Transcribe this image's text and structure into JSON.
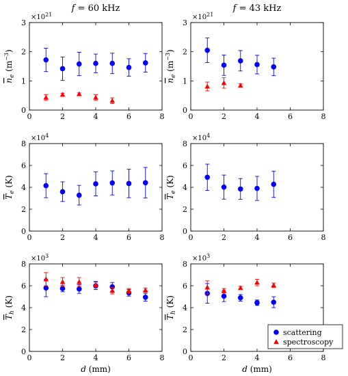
{
  "titles": {
    "left": "f = 60 kHz",
    "right": "f = 43 kHz"
  },
  "xlabel": "d (mm)",
  "legend": {
    "scattering": "scattering",
    "spectroscopy": "spectroscopy",
    "placement": "bottom-right of last panel"
  },
  "colors": {
    "scattering": "#0000ff",
    "spectroscopy": "#ff0000"
  },
  "chart_data": [
    {
      "type": "scatter",
      "column": "left",
      "row": 0,
      "ylabel": "n̄e (m⁻³)",
      "ylabel_parts": {
        "sym": "n",
        "sub": "e",
        "unit_pre": "(m",
        "unit_sup": "−3",
        "unit_post": ")"
      },
      "multiplier": {
        "base": "×10",
        "exp": "21"
      },
      "xlim": [
        0,
        8
      ],
      "ylim": [
        0,
        3
      ],
      "xticks": [
        "0",
        "2",
        "4",
        "6",
        "8"
      ],
      "yticks": [
        "0",
        "1",
        "2",
        "3"
      ],
      "series": [
        {
          "name": "scattering",
          "x": [
            1,
            2,
            3,
            4,
            5,
            6,
            7
          ],
          "y": [
            1.72,
            1.42,
            1.58,
            1.6,
            1.6,
            1.46,
            1.62
          ],
          "err": [
            0.4,
            0.4,
            0.4,
            0.32,
            0.35,
            0.3,
            0.32
          ]
        },
        {
          "name": "spectroscopy",
          "x": [
            1,
            2,
            3,
            4,
            5
          ],
          "y": [
            0.43,
            0.53,
            0.55,
            0.43,
            0.32
          ],
          "err": [
            0.1,
            0.05,
            0.04,
            0.1,
            0.1
          ]
        }
      ]
    },
    {
      "type": "scatter",
      "column": "right",
      "row": 0,
      "ylabel": "n̄e (m⁻³)",
      "ylabel_parts": {
        "sym": "n",
        "sub": "e",
        "unit_pre": "(m",
        "unit_sup": "−3",
        "unit_post": ")"
      },
      "multiplier": {
        "base": "×10",
        "exp": "21"
      },
      "xlim": [
        0,
        8
      ],
      "ylim": [
        0,
        3
      ],
      "xticks": [
        "0",
        "2",
        "4",
        "6",
        "8"
      ],
      "yticks": [
        "0",
        "1",
        "2",
        "3"
      ],
      "series": [
        {
          "name": "scattering",
          "x": [
            1,
            2,
            3,
            4,
            5
          ],
          "y": [
            2.05,
            1.54,
            1.69,
            1.56,
            1.48
          ],
          "err": [
            0.42,
            0.35,
            0.35,
            0.32,
            0.3
          ]
        },
        {
          "name": "spectroscopy",
          "x": [
            1,
            2,
            3
          ],
          "y": [
            0.81,
            0.93,
            0.84
          ],
          "err": [
            0.15,
            0.18,
            0.06
          ]
        }
      ]
    },
    {
      "type": "scatter",
      "column": "left",
      "row": 1,
      "ylabel": "T̄e (K)",
      "ylabel_parts": {
        "sym": "T",
        "sub": "e",
        "unit_pre": "(K)",
        "unit_sup": "",
        "unit_post": ""
      },
      "multiplier": {
        "base": "×10",
        "exp": "4"
      },
      "xlim": [
        0,
        8
      ],
      "ylim": [
        0,
        8
      ],
      "xticks": [
        "0",
        "2",
        "4",
        "6",
        "8"
      ],
      "yticks": [
        "0",
        "2",
        "4",
        "6",
        "8"
      ],
      "series": [
        {
          "name": "scattering",
          "x": [
            1,
            2,
            3,
            4,
            5,
            6,
            7
          ],
          "y": [
            4.15,
            3.6,
            3.28,
            4.32,
            4.4,
            4.35,
            4.42
          ],
          "err": [
            1.1,
            0.9,
            0.9,
            1.1,
            1.1,
            1.3,
            1.4
          ]
        }
      ]
    },
    {
      "type": "scatter",
      "column": "right",
      "row": 1,
      "ylabel": "T̄e (K)",
      "ylabel_parts": {
        "sym": "T",
        "sub": "e",
        "unit_pre": "(K)",
        "unit_sup": "",
        "unit_post": ""
      },
      "multiplier": {
        "base": "×10",
        "exp": "4"
      },
      "xlim": [
        0,
        8
      ],
      "ylim": [
        0,
        8
      ],
      "xticks": [
        "0",
        "2",
        "4",
        "6",
        "8"
      ],
      "yticks": [
        "0",
        "2",
        "4",
        "6",
        "8"
      ],
      "series": [
        {
          "name": "scattering",
          "x": [
            1,
            2,
            3,
            4,
            5
          ],
          "y": [
            4.92,
            4.02,
            3.85,
            3.9,
            4.28
          ],
          "err": [
            1.2,
            1.1,
            0.95,
            1.1,
            1.2
          ]
        }
      ]
    },
    {
      "type": "scatter",
      "column": "left",
      "row": 2,
      "ylabel": "T̄h (K)",
      "ylabel_parts": {
        "sym": "T",
        "sub": "h",
        "unit_pre": "(K)",
        "unit_sup": "",
        "unit_post": ""
      },
      "multiplier": {
        "base": "×10",
        "exp": "3"
      },
      "xlim": [
        0,
        8
      ],
      "ylim": [
        0,
        8
      ],
      "xticks": [
        "0",
        "2",
        "4",
        "6",
        "8"
      ],
      "yticks": [
        "0",
        "2",
        "4",
        "6",
        "8"
      ],
      "series": [
        {
          "name": "scattering",
          "x": [
            1,
            2,
            3,
            4,
            5,
            6,
            7
          ],
          "y": [
            5.8,
            5.75,
            5.7,
            6.0,
            5.9,
            5.35,
            4.95
          ],
          "err": [
            0.8,
            0.3,
            0.4,
            0.35,
            0.4,
            0.3,
            0.35
          ]
        },
        {
          "name": "spectroscopy",
          "x": [
            1,
            2,
            3,
            4,
            5,
            6,
            7
          ],
          "y": [
            6.6,
            6.35,
            6.35,
            6.1,
            5.55,
            5.55,
            5.6
          ],
          "err": [
            0.6,
            0.4,
            0.4,
            0.3,
            0.3,
            0.2,
            0.2
          ]
        }
      ]
    },
    {
      "type": "scatter",
      "column": "right",
      "row": 2,
      "ylabel": "T̄h (K)",
      "ylabel_parts": {
        "sym": "T",
        "sub": "h",
        "unit_pre": "(K)",
        "unit_sup": "",
        "unit_post": ""
      },
      "multiplier": {
        "base": "×10",
        "exp": "3"
      },
      "xlim": [
        0,
        8
      ],
      "ylim": [
        0,
        8
      ],
      "xticks": [
        "0",
        "2",
        "4",
        "6",
        "8"
      ],
      "yticks": [
        "0",
        "2",
        "4",
        "6",
        "8"
      ],
      "series": [
        {
          "name": "scattering",
          "x": [
            1,
            2,
            3,
            4,
            5
          ],
          "y": [
            5.3,
            5.05,
            4.9,
            4.45,
            4.5
          ],
          "err": [
            0.9,
            0.5,
            0.3,
            0.25,
            0.5
          ]
        },
        {
          "name": "spectroscopy",
          "x": [
            1,
            2,
            3,
            4,
            5
          ],
          "y": [
            5.85,
            5.55,
            5.8,
            6.3,
            6.05
          ],
          "err": [
            0.6,
            0.2,
            0.15,
            0.3,
            0.2
          ]
        }
      ]
    }
  ]
}
